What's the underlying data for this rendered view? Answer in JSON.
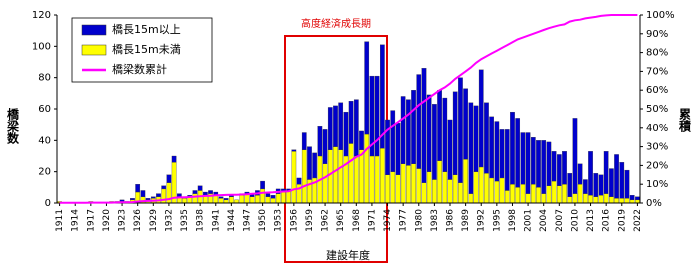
{
  "chart_data": {
    "type": "bar",
    "annotation": "高度経済成長期",
    "x_label": "建設年度",
    "y_label": "橋梁数",
    "y2_label": "累積",
    "x": [
      1911,
      1912,
      1913,
      1914,
      1915,
      1916,
      1917,
      1918,
      1919,
      1920,
      1921,
      1922,
      1923,
      1924,
      1925,
      1926,
      1927,
      1928,
      1929,
      1930,
      1931,
      1932,
      1933,
      1934,
      1935,
      1936,
      1937,
      1938,
      1939,
      1940,
      1941,
      1942,
      1943,
      1944,
      1945,
      1946,
      1947,
      1948,
      1949,
      1950,
      1951,
      1952,
      1953,
      1954,
      1955,
      1956,
      1957,
      1958,
      1959,
      1960,
      1961,
      1962,
      1963,
      1964,
      1965,
      1966,
      1967,
      1968,
      1969,
      1970,
      1971,
      1972,
      1973,
      1974,
      1975,
      1976,
      1977,
      1978,
      1979,
      1980,
      1981,
      1982,
      1983,
      1984,
      1985,
      1986,
      1987,
      1988,
      1989,
      1990,
      1991,
      1992,
      1993,
      1994,
      1995,
      1996,
      1997,
      1998,
      1999,
      2000,
      2001,
      2002,
      2003,
      2004,
      2005,
      2006,
      2007,
      2008,
      2009,
      2010,
      2011,
      2012,
      2013,
      2014,
      2015,
      2016,
      2017,
      2018,
      2019,
      2020,
      2021,
      2022
    ],
    "xlim": [
      1910.5,
      2022.5
    ],
    "xticks": [
      1911,
      1914,
      1917,
      1920,
      1923,
      1926,
      1929,
      1932,
      1935,
      1938,
      1941,
      1944,
      1947,
      1950,
      1953,
      1956,
      1959,
      1962,
      1965,
      1968,
      1971,
      1974,
      1977,
      1980,
      1983,
      1986,
      1989,
      1992,
      1995,
      1998,
      2001,
      2004,
      2007,
      2010,
      2013,
      2016,
      2019,
      2022
    ],
    "ylim": [
      0,
      120
    ],
    "yticks": [
      0,
      20,
      40,
      60,
      80,
      100,
      120
    ],
    "y2lim": [
      0,
      100
    ],
    "y2ticks": [
      {
        "value": 0,
        "label": "0%"
      },
      {
        "value": 10,
        "label": "10%"
      },
      {
        "value": 20,
        "label": "20%"
      },
      {
        "value": 30,
        "label": "30%"
      },
      {
        "value": 40,
        "label": "40%"
      },
      {
        "value": 50,
        "label": "50%"
      },
      {
        "value": 60,
        "label": "60%"
      },
      {
        "value": 70,
        "label": "70%"
      },
      {
        "value": 80,
        "label": "80%"
      },
      {
        "value": 90,
        "label": "90%"
      },
      {
        "value": 100,
        "label": "100%"
      }
    ],
    "legend": "upper left",
    "series": [
      {
        "name": "橋長15m以上",
        "type": "bar",
        "color": "#0000cc",
        "values": [
          0,
          0,
          0,
          0,
          0,
          0,
          0,
          0,
          0,
          0,
          0,
          0,
          1,
          0,
          1,
          5,
          4,
          1,
          1,
          2,
          2,
          5,
          4,
          2,
          1,
          1,
          2,
          3,
          2,
          2,
          2,
          1,
          1,
          1,
          0,
          1,
          1,
          2,
          3,
          5,
          2,
          2,
          3,
          2,
          1,
          1,
          4,
          11,
          21,
          16,
          19,
          22,
          27,
          26,
          30,
          28,
          27,
          36,
          12,
          59,
          51,
          51,
          66,
          35,
          39,
          33,
          43,
          42,
          47,
          60,
          73,
          49,
          48,
          45,
          47,
          38,
          53,
          67,
          45,
          58,
          42,
          62,
          45,
          39,
          38,
          31,
          39,
          46,
          44,
          33,
          39,
          30,
          30,
          34,
          28,
          19,
          20,
          21,
          15,
          48,
          13,
          9,
          28,
          15,
          13,
          27,
          18,
          28,
          23,
          18,
          3,
          2
        ]
      },
      {
        "name": "橋長15m未満",
        "type": "bar",
        "color": "#ffff00",
        "values": [
          1,
          0,
          0,
          0,
          0,
          0,
          1,
          0,
          0,
          0,
          1,
          1,
          1,
          1,
          2,
          7,
          4,
          2,
          3,
          4,
          9,
          13,
          26,
          4,
          3,
          4,
          6,
          8,
          5,
          6,
          5,
          3,
          2,
          4,
          2,
          5,
          6,
          4,
          5,
          9,
          4,
          3,
          6,
          7,
          8,
          33,
          12,
          34,
          15,
          16,
          30,
          25,
          34,
          36,
          34,
          30,
          38,
          30,
          34,
          44,
          30,
          30,
          35,
          18,
          20,
          18,
          25,
          24,
          25,
          22,
          13,
          20,
          15,
          27,
          20,
          15,
          18,
          13,
          28,
          6,
          20,
          23,
          19,
          16,
          14,
          16,
          8,
          12,
          10,
          12,
          6,
          12,
          10,
          6,
          11,
          14,
          11,
          12,
          4,
          6,
          12,
          6,
          5,
          4,
          5,
          6,
          4,
          3,
          3,
          3,
          2,
          2
        ]
      },
      {
        "name": "橋梁数累計",
        "type": "line",
        "axis": "y2",
        "color": "#ff00ff",
        "values": [
          0.1,
          0.1,
          0.1,
          0.1,
          0.1,
          0.1,
          0.2,
          0.2,
          0.2,
          0.2,
          0.2,
          0.3,
          0.4,
          0.4,
          0.5,
          0.8,
          1.0,
          1.1,
          1.2,
          1.4,
          1.7,
          2.1,
          2.8,
          3.0,
          3.1,
          3.2,
          3.4,
          3.6,
          3.8,
          3.9,
          4.1,
          4.2,
          4.3,
          4.4,
          4.4,
          4.5,
          4.7,
          4.9,
          5.1,
          5.5,
          5.6,
          5.7,
          5.9,
          6.1,
          6.3,
          7.3,
          7.7,
          9.0,
          10.0,
          10.9,
          12.3,
          13.7,
          15.4,
          17.2,
          19.0,
          20.7,
          22.6,
          24.5,
          25.8,
          28.7,
          31.1,
          33.4,
          36.3,
          39,
          41,
          43,
          45,
          47,
          49.5,
          52,
          54,
          56,
          58,
          60,
          61.5,
          63.5,
          66,
          68,
          70,
          72,
          74.5,
          76.5,
          78,
          79.5,
          81,
          82.5,
          84,
          85.5,
          87,
          88,
          89,
          90,
          91,
          92,
          93,
          93.8,
          94.5,
          95,
          96.5,
          97.2,
          97.5,
          98.2,
          98.6,
          99,
          99.5,
          99.8,
          100,
          100,
          100,
          100,
          100,
          100
        ]
      }
    ]
  }
}
